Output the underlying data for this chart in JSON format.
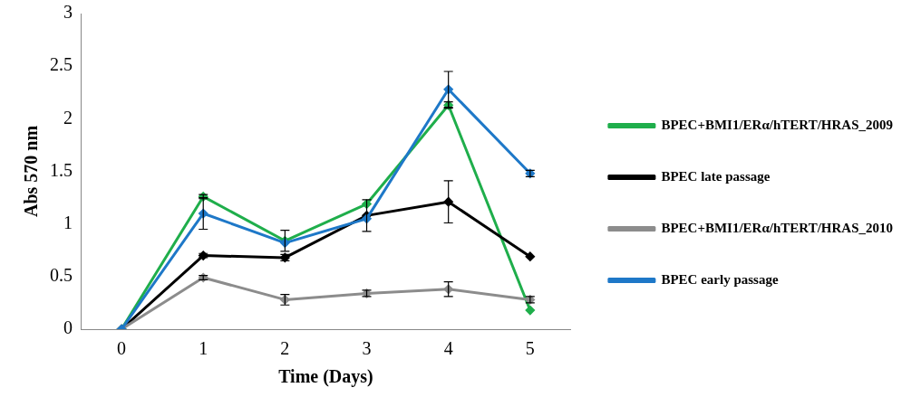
{
  "chart_data": {
    "type": "line",
    "xlabel": "Time (Days)",
    "ylabel": "Abs 570 nm",
    "categories": [
      "0",
      "1",
      "2",
      "3",
      "4",
      "5"
    ],
    "ylim": [
      0,
      3
    ],
    "yticks": [
      0,
      0.5,
      1,
      1.5,
      2,
      2.5,
      3
    ],
    "grid": false,
    "legend": "right",
    "marker": "diamond",
    "series": [
      {
        "name": "BPEC+BMI1/ERα/hTERT/HRAS_2009",
        "color": "#1fae4b",
        "values": [
          0,
          1.26,
          0.84,
          1.19,
          2.13,
          0.18
        ],
        "errors": [
          null,
          0.02,
          0.1,
          null,
          0.03,
          null
        ]
      },
      {
        "name": "BPEC late passage",
        "color": "#000000",
        "values": [
          0,
          0.7,
          0.68,
          1.08,
          1.21,
          0.69
        ],
        "errors": [
          null,
          0.02,
          0.03,
          0.15,
          0.2,
          null
        ]
      },
      {
        "name": "BPEC+BMI1/ERα/hTERT/HRAS_2010",
        "color": "#8c8c8c",
        "values": [
          0,
          0.49,
          0.28,
          0.34,
          0.38,
          0.28
        ],
        "errors": [
          null,
          0.02,
          0.05,
          0.03,
          0.07,
          0.03
        ]
      },
      {
        "name": "BPEC early passage",
        "color": "#1e78c8",
        "values": [
          0,
          1.1,
          0.82,
          1.05,
          2.28,
          1.48
        ],
        "errors": [
          null,
          0.15,
          null,
          null,
          0.17,
          0.03
        ]
      }
    ]
  }
}
